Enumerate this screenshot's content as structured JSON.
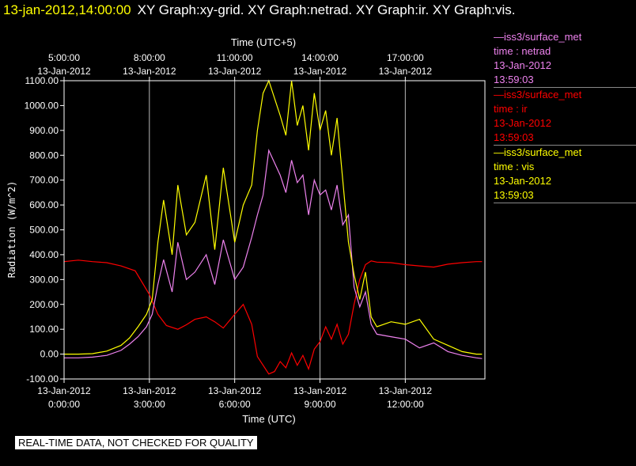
{
  "header": {
    "timestamp": "13-jan-2012,14:00:00",
    "graphs": "XY Graph:xy-grid.  XY Graph:netrad.  XY Graph:ir.  XY Graph:vis."
  },
  "legend": [
    {
      "lines": [
        "—iss3/surface_met",
        "time : netrad",
        "13-Jan-2012",
        "13:59:03"
      ],
      "color": "#ee82ee"
    },
    {
      "lines": [
        "—iss3/surface_met",
        "time : ir",
        "13-Jan-2012",
        "13:59:03"
      ],
      "color": "#ff0000"
    },
    {
      "lines": [
        "—iss3/surface_met",
        "time : vis",
        "13-Jan-2012",
        "13:59:03"
      ],
      "color": "#ffff00"
    }
  ],
  "disclaimer": "REAL-TIME DATA, NOT CHECKED FOR QUALITY",
  "chart_data": {
    "type": "line",
    "ylabel": "Radiation (W/m^2)",
    "xlabel": "Time (UTC)",
    "x2label": "Time (UTC+5)",
    "ylim": [
      -100,
      1100
    ],
    "xlim_hours": [
      0,
      14.8
    ],
    "y_ticks": [
      "-100.00",
      "0.00",
      "100.00",
      "200.00",
      "300.00",
      "400.00",
      "500.00",
      "600.00",
      "700.00",
      "800.00",
      "900.00",
      "1000.00",
      "1100.00"
    ],
    "x_ticks": [
      {
        "date": "13-Jan-2012",
        "time": "0:00:00",
        "hour": 0
      },
      {
        "date": "13-Jan-2012",
        "time": "3:00:00",
        "hour": 3
      },
      {
        "date": "13-Jan-2012",
        "time": "6:00:00",
        "hour": 6
      },
      {
        "date": "13-Jan-2012",
        "time": "9:00:00",
        "hour": 9
      },
      {
        "date": "13-Jan-2012",
        "time": "12:00:00",
        "hour": 12
      }
    ],
    "x2_ticks": [
      {
        "time": "5:00:00",
        "date": "13-Jan-2012",
        "hour": 0
      },
      {
        "time": "8:00:00",
        "date": "13-Jan-2012",
        "hour": 3
      },
      {
        "time": "11:00:00",
        "date": "13-Jan-2012",
        "hour": 6
      },
      {
        "time": "14:00:00",
        "date": "13-Jan-2012",
        "hour": 9
      },
      {
        "time": "17:00:00",
        "date": "13-Jan-2012",
        "hour": 12
      }
    ],
    "grid_vertical": true,
    "series": [
      {
        "key": "ir",
        "color": "#ff0000",
        "x": [
          0,
          0.5,
          1,
          1.5,
          2,
          2.5,
          3,
          3.3,
          3.6,
          4,
          4.3,
          4.6,
          5,
          5.3,
          5.6,
          6,
          6.3,
          6.6,
          6.8,
          7,
          7.2,
          7.4,
          7.6,
          7.8,
          8,
          8.2,
          8.4,
          8.6,
          8.8,
          9,
          9.2,
          9.4,
          9.6,
          9.8,
          10,
          10.2,
          10.4,
          10.6,
          10.8,
          11,
          11.5,
          12,
          12.5,
          13,
          13.5,
          14,
          14.5,
          14.7
        ],
        "y": [
          372,
          378,
          372,
          368,
          355,
          335,
          240,
          160,
          115,
          100,
          118,
          140,
          150,
          130,
          105,
          160,
          200,
          120,
          -10,
          -45,
          -80,
          -70,
          -30,
          -55,
          5,
          -45,
          -5,
          -60,
          20,
          50,
          110,
          60,
          120,
          40,
          80,
          200,
          300,
          360,
          375,
          370,
          368,
          360,
          355,
          350,
          362,
          368,
          372,
          372
        ]
      },
      {
        "key": "netrad",
        "color": "#ee82ee",
        "x": [
          0,
          0.5,
          1,
          1.5,
          2,
          2.3,
          2.6,
          2.9,
          3.1,
          3.3,
          3.5,
          3.8,
          4,
          4.3,
          4.6,
          5,
          5.3,
          5.6,
          6,
          6.3,
          6.6,
          6.8,
          7,
          7.2,
          7.4,
          7.6,
          7.8,
          8,
          8.2,
          8.4,
          8.6,
          8.8,
          9,
          9.2,
          9.4,
          9.6,
          9.8,
          10,
          10.2,
          10.4,
          10.6,
          10.8,
          11,
          11.5,
          12,
          12.5,
          13,
          13.5,
          14,
          14.5,
          14.7
        ],
        "y": [
          -15,
          -15,
          -12,
          -5,
          15,
          40,
          70,
          110,
          160,
          280,
          380,
          250,
          450,
          300,
          330,
          400,
          280,
          460,
          300,
          350,
          470,
          560,
          640,
          820,
          770,
          720,
          650,
          780,
          690,
          720,
          560,
          700,
          640,
          660,
          580,
          680,
          520,
          560,
          270,
          190,
          250,
          120,
          80,
          70,
          60,
          25,
          45,
          10,
          -5,
          -15,
          -18
        ]
      },
      {
        "key": "vis",
        "color": "#ffff00",
        "x": [
          0,
          0.5,
          1,
          1.5,
          2,
          2.3,
          2.6,
          2.9,
          3.1,
          3.3,
          3.5,
          3.8,
          4,
          4.3,
          4.6,
          5,
          5.3,
          5.6,
          6,
          6.3,
          6.6,
          6.8,
          7,
          7.2,
          7.4,
          7.6,
          7.8,
          8,
          8.2,
          8.4,
          8.6,
          8.8,
          9,
          9.2,
          9.4,
          9.6,
          9.8,
          10,
          10.2,
          10.4,
          10.6,
          10.8,
          11,
          11.5,
          12,
          12.5,
          13,
          13.5,
          14,
          14.5,
          14.7
        ],
        "y": [
          0,
          0,
          2,
          12,
          35,
          65,
          110,
          160,
          220,
          450,
          620,
          400,
          680,
          480,
          530,
          720,
          420,
          750,
          450,
          600,
          680,
          900,
          1050,
          1100,
          1030,
          960,
          880,
          1100,
          920,
          1000,
          820,
          1050,
          900,
          980,
          800,
          950,
          700,
          450,
          320,
          220,
          330,
          150,
          110,
          130,
          120,
          140,
          60,
          35,
          10,
          0,
          0
        ]
      }
    ]
  }
}
